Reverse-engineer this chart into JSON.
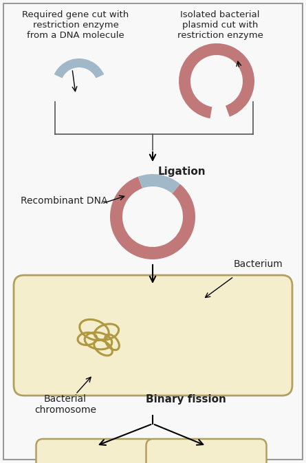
{
  "bg_color": "#f8f8f8",
  "border_color": "#999999",
  "pink_color": "#c07878",
  "blue_color": "#a0b8c8",
  "tan_color": "#b09840",
  "cell_border": "#b0a060",
  "cell_bg": "#f5eecc",
  "text_dark": "#222222",
  "title_top_left": "Required gene cut with\nrestriction enzyme\nfrom a DNA molecule",
  "title_top_right": "Isolated bacterial\nplasmid cut with\nrestriction enzyme",
  "ligation_label": "Ligation",
  "recombinant_label": "Recombinant DNA",
  "bacterium_label": "Bacterium",
  "bacterial_chrom_label": "Bacterial\nchromosome",
  "binary_fission_label": "Binary fission"
}
